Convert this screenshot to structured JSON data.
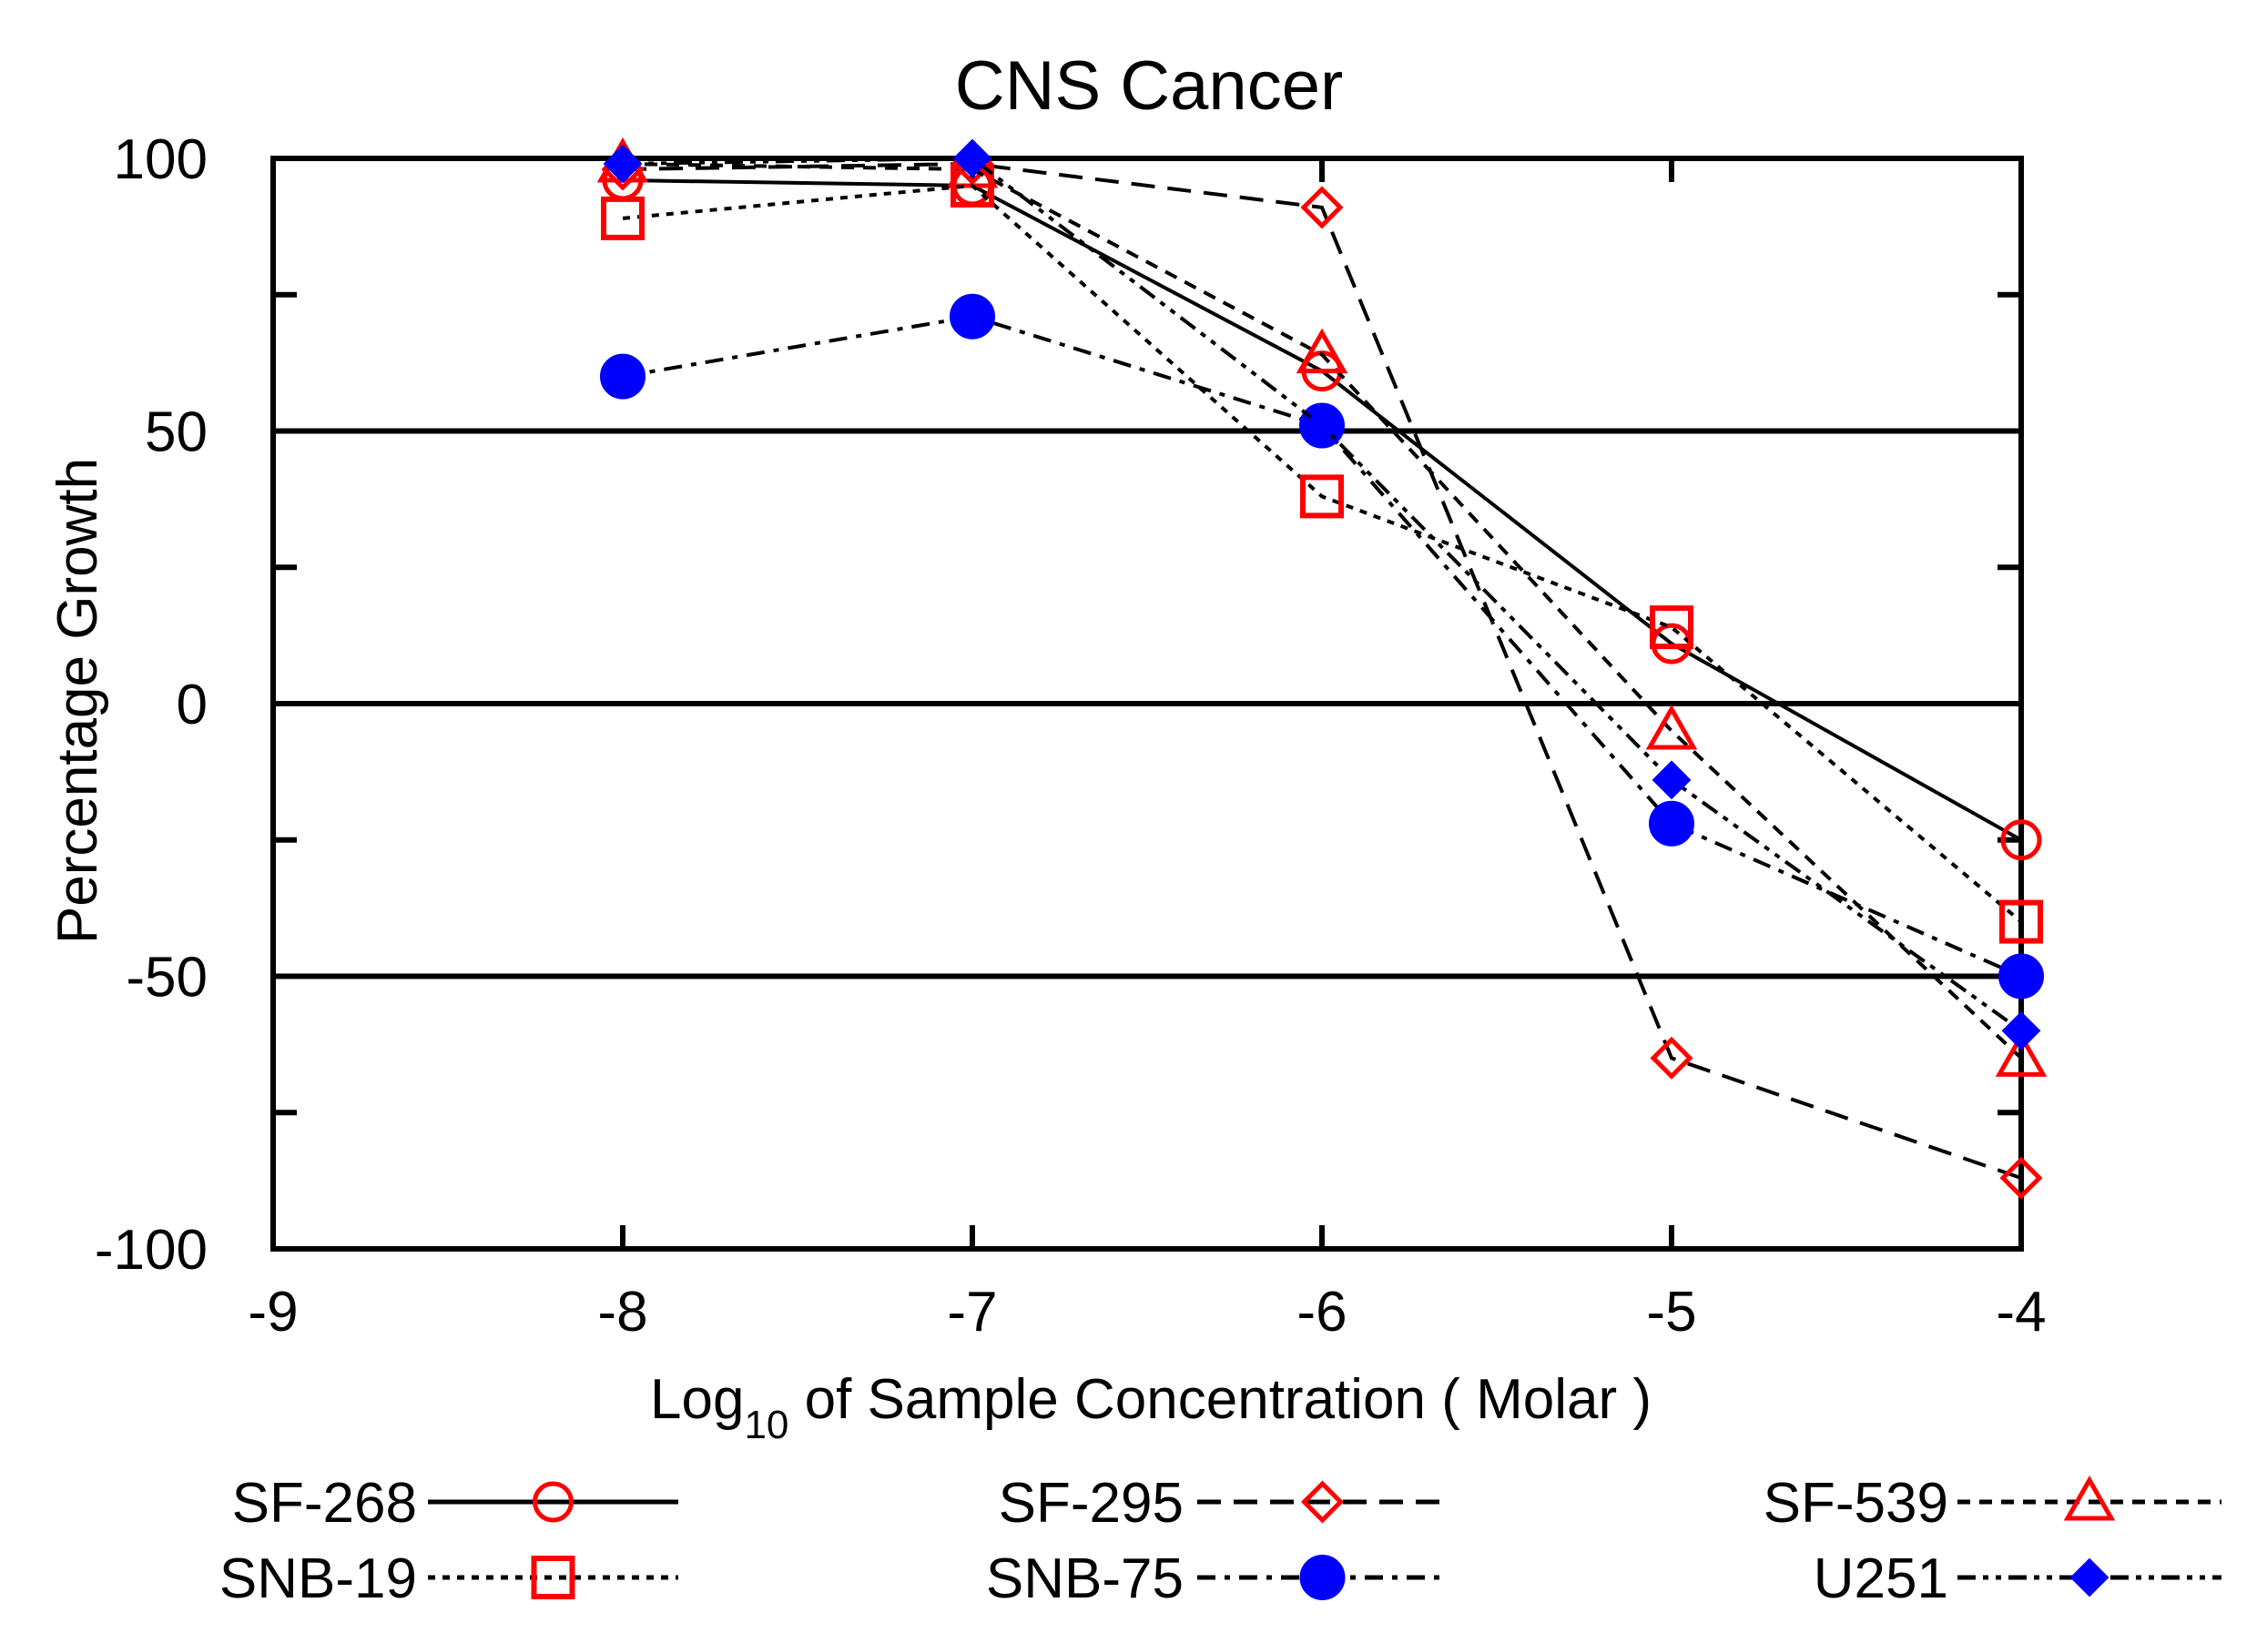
{
  "chart_data": {
    "type": "line",
    "title": "CNS Cancer",
    "xlabel": {
      "prefix": "Log",
      "sub": "10",
      "suffix": " of Sample Concentration ( Molar )"
    },
    "ylabel": "Percentage Growth",
    "xlim": [
      -9,
      -4
    ],
    "ylim": [
      -100,
      100
    ],
    "xticks": [
      -9,
      -8,
      -7,
      -6,
      -5,
      -4
    ],
    "xtick_labels": [
      "-9",
      "-8",
      "-7",
      "-6",
      "-5",
      "-4"
    ],
    "yticks": [
      -100,
      -50,
      0,
      50,
      100
    ],
    "ytick_labels": [
      "-100",
      "-50",
      "0",
      "50",
      "100"
    ],
    "reference_lines": [
      50,
      0,
      -50
    ],
    "x": [
      -8,
      -7,
      -6,
      -5,
      -4
    ],
    "series": [
      {
        "name": "SF-268",
        "values": [
          96,
          95,
          61,
          11,
          -25
        ],
        "color": "#ff0000",
        "marker": "open-circle",
        "dash": "solid"
      },
      {
        "name": "SF-295",
        "values": [
          98,
          99,
          91,
          -65,
          -87
        ],
        "color": "#ff0000",
        "marker": "open-diamond",
        "dash": "long-dash"
      },
      {
        "name": "SF-539",
        "values": [
          99,
          98,
          64,
          -5,
          -65
        ],
        "color": "#ff0000",
        "marker": "open-triangle",
        "dash": "short-dash"
      },
      {
        "name": "SNB-19",
        "values": [
          89,
          95,
          38,
          14,
          -40
        ],
        "color": "#ff0000",
        "marker": "open-square",
        "dash": "dotted"
      },
      {
        "name": "SNB-75",
        "values": [
          60,
          71,
          51,
          -22,
          -50
        ],
        "color": "#0000ff",
        "marker": "filled-circle",
        "dash": "dash-dot"
      },
      {
        "name": "U251",
        "values": [
          99,
          100,
          51,
          -14,
          -60
        ],
        "color": "#0000ff",
        "marker": "filled-diamond",
        "dash": "dash-dot-dot"
      }
    ]
  }
}
